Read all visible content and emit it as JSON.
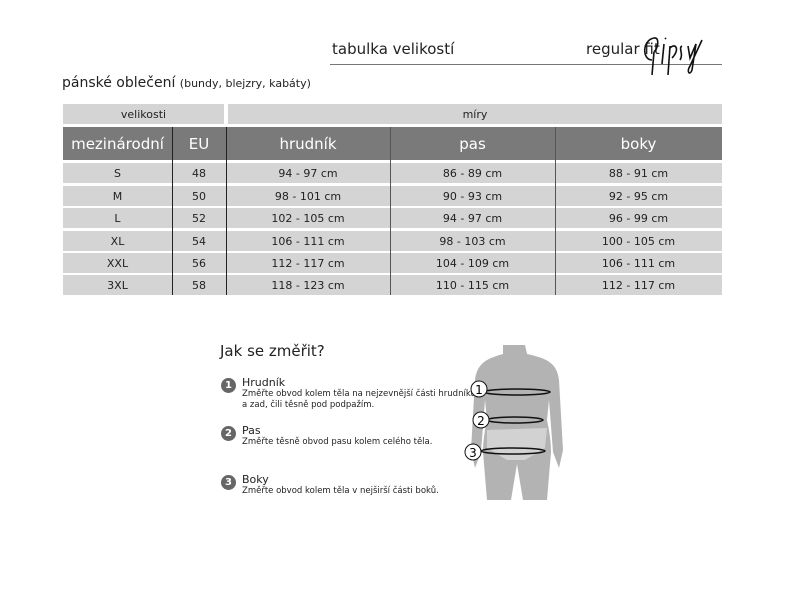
{
  "header": {
    "title": "tabulka velikostí",
    "fit": "regular fit",
    "brand_logo": "Gipsy"
  },
  "subtitle": {
    "main": "pánské oblečení",
    "detail": "(bundy, blejzry, kabáty)"
  },
  "table": {
    "group_headers": [
      "velikosti",
      "míry"
    ],
    "columns": [
      "mezinárodní",
      "EU",
      "hrudník",
      "pas",
      "boky"
    ],
    "rows": [
      [
        "S",
        "48",
        "94 - 97 cm",
        "86 - 89 cm",
        "88 - 91 cm"
      ],
      [
        "M",
        "50",
        "98 - 101 cm",
        "90 - 93 cm",
        "92 - 95 cm"
      ],
      [
        "L",
        "52",
        "102 - 105 cm",
        "94 - 97 cm",
        "96 - 99 cm"
      ],
      [
        "XL",
        "54",
        "106 - 111 cm",
        "98 - 103 cm",
        "100 - 105 cm"
      ],
      [
        "XXL",
        "56",
        "112 - 117 cm",
        "104 - 109 cm",
        "106 - 111 cm"
      ],
      [
        "3XL",
        "58",
        "118 - 123 cm",
        "110 - 115 cm",
        "112 - 117 cm"
      ]
    ]
  },
  "howto": {
    "title": "Jak se změřit?",
    "items": [
      {
        "num": "1",
        "title": "Hrudník",
        "desc": "Změřte obvod kolem těla na nejzevnější části hrudníku a zad, čili těsně pod podpažím."
      },
      {
        "num": "2",
        "title": "Pas",
        "desc": "Změřte těsně obvod pasu kolem celého těla."
      },
      {
        "num": "3",
        "title": "Boky",
        "desc": "Změřte obvod kolem těla v nejširší části boků."
      }
    ],
    "figure_labels": [
      "1",
      "2",
      "3"
    ]
  },
  "colors": {
    "header_dark": "#7a7a7a",
    "row_light": "#d4d4d4",
    "figure": "#b3b3b3"
  }
}
